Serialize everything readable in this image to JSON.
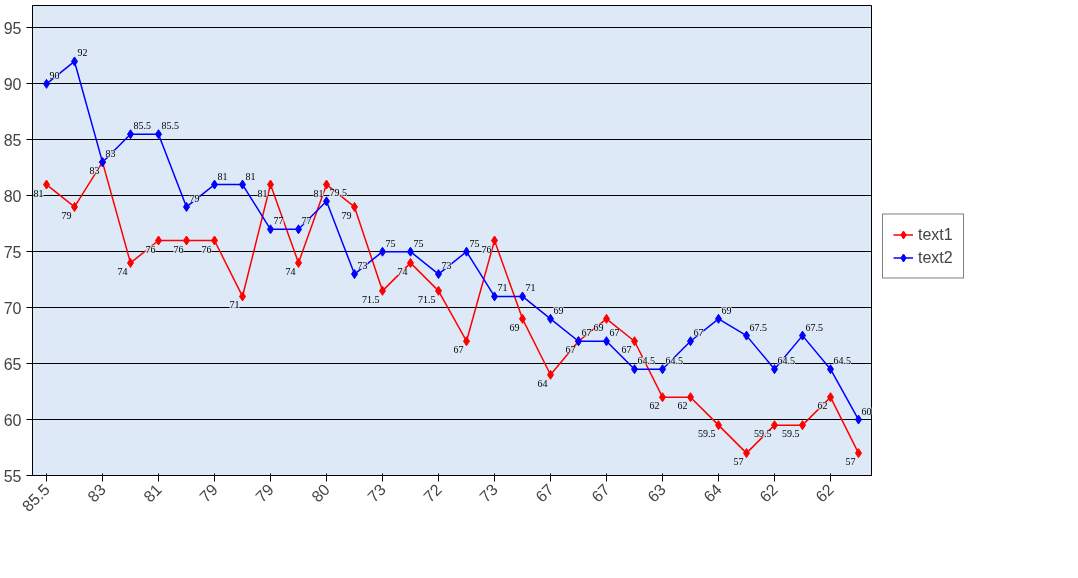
{
  "chart_data": {
    "type": "line",
    "categories": [
      "85.5",
      null,
      "83",
      null,
      "81",
      null,
      "79",
      null,
      "79",
      null,
      "80",
      null,
      "73",
      null,
      "72",
      null,
      "73",
      null,
      "67",
      null,
      "67",
      null,
      "63",
      null,
      "64",
      null,
      "62",
      null,
      "62",
      null
    ],
    "series": [
      {
        "name": "text1",
        "color": "#ff0000",
        "values": [
          81,
          79,
          83,
          74,
          76,
          76,
          76,
          71,
          81,
          74,
          81,
          79,
          71.5,
          74,
          71.5,
          67,
          76,
          69,
          64,
          67,
          69,
          67,
          62,
          62,
          59.5,
          57,
          59.5,
          59.5,
          62,
          57
        ]
      },
      {
        "name": "text2",
        "color": "#0000ff",
        "values": [
          90,
          92,
          83,
          85.5,
          85.5,
          79,
          81,
          81,
          77,
          77,
          79.5,
          73,
          75,
          75,
          73,
          75,
          71,
          71,
          69,
          67,
          67,
          64.5,
          64.5,
          67,
          69,
          67.5,
          64.5,
          67.5,
          64.5,
          60
        ]
      }
    ],
    "ylim": [
      55,
      97
    ],
    "yticks": [
      55,
      60,
      65,
      70,
      75,
      80,
      85,
      90,
      95
    ],
    "grid": "y",
    "legend": "right",
    "marker": "diamond",
    "line_style": "solid",
    "data_labels": true
  }
}
